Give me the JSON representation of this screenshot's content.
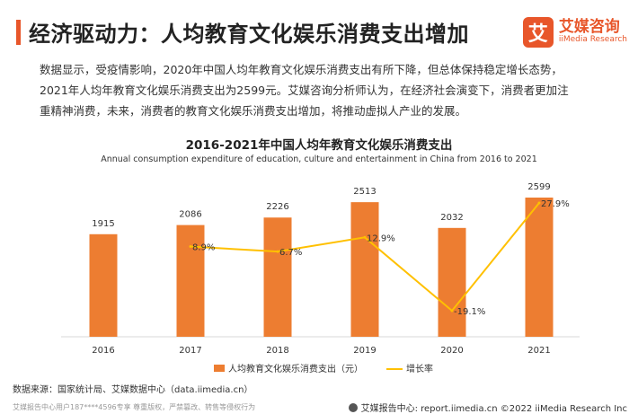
{
  "page": {
    "title": "经济驱动力：人均教育文化娱乐消费支出增加",
    "logo_mark": "艾",
    "logo_cn": "艾媒咨询",
    "logo_en": "iiMedia Research",
    "description": [
      "数据显示，受疫情影响，2020年中国人均年教育文化娱乐消费支出有所下降，但总体保持稳定增长态势，",
      "2021年人均年教育文化娱乐消费支出为2599元。艾媒咨询分析师认为，在经济社会演变下，消费者更加注",
      "重精神消费，未来，消费者的教育文化娱乐消费支出增加，将推动虚拟人产业的发展。"
    ],
    "source": "数据来源：国家统计局、艾媒数据中心（data.iimedia.cn）",
    "footer_right": "艾媒报告中心: report.iimedia.cn ©2022 iiMedia Research Inc",
    "watermark": "艾媒报告中心用户187****4596专享 尊重版权，严禁篡改、转售等侵权行为"
  },
  "colors": {
    "bar": "#ed7d31",
    "line": "#ffc000",
    "accent": "#e8562a"
  },
  "chart_data": {
    "type": "bar",
    "title": "2016-2021年中国人均年教育文化娱乐消费支出",
    "subtitle": "Annual consumption expenditure of education, culture and entertainment in China from 2016 to 2021",
    "categories": [
      "2016",
      "2017",
      "2018",
      "2019",
      "2020",
      "2021"
    ],
    "series": [
      {
        "name": "人均教育文化娱乐消费支出（元）",
        "type": "bar",
        "values": [
          1915,
          2086,
          2226,
          2513,
          2032,
          2599
        ],
        "labels": [
          "1915",
          "2086",
          "2226",
          "2513",
          "2032",
          "2599"
        ]
      },
      {
        "name": "增长率",
        "type": "line",
        "x": [
          "2017",
          "2018",
          "2019",
          "2020",
          "2021"
        ],
        "values": [
          8.9,
          6.7,
          12.9,
          -19.1,
          27.9
        ],
        "labels": [
          "8.9%",
          "6.7%",
          "12.9%",
          "-19.1%",
          "27.9%"
        ]
      }
    ],
    "legend_position": "bottom",
    "grid": false
  }
}
